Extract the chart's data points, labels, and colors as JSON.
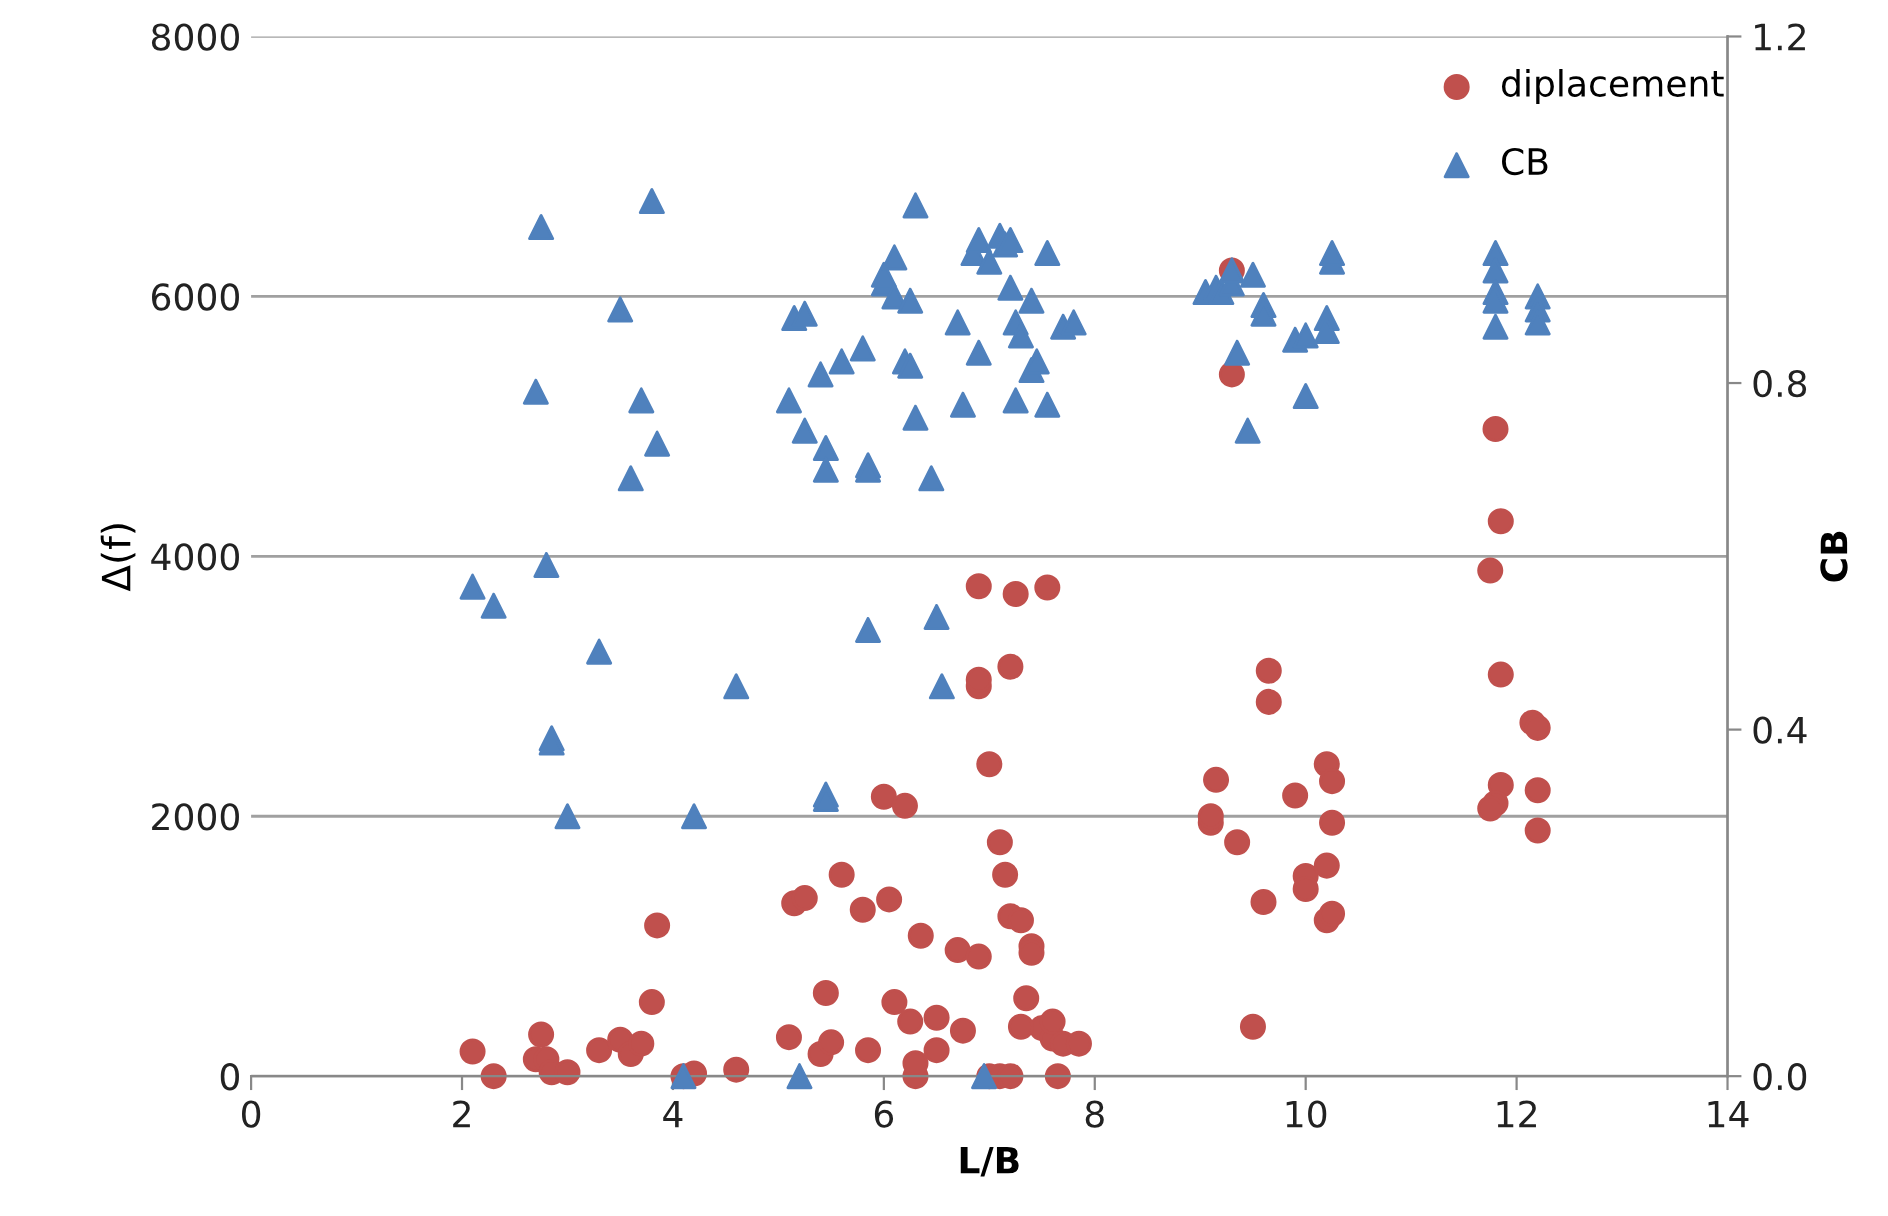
{
  "chart_data": {
    "type": "scatter",
    "xlabel": "L/B",
    "ylabel": "Δ(f)",
    "y2label": "CB",
    "xlim": [
      0,
      14
    ],
    "xticks": [
      0,
      2,
      4,
      6,
      8,
      10,
      12,
      14
    ],
    "ylim": [
      0,
      8000
    ],
    "yticks": [
      0,
      2000,
      4000,
      6000,
      8000
    ],
    "y2lim": [
      0,
      1.2
    ],
    "y2ticks": [
      {
        "value": 0,
        "label": "0.0"
      },
      {
        "value": 0.4,
        "label": "0.4"
      },
      {
        "value": 0.8,
        "label": "0.8"
      },
      {
        "value": 1.2,
        "label": "1.2"
      }
    ],
    "grid": "y",
    "legend": "top right",
    "series": [
      {
        "name": "diplacement",
        "color": "#c0504d",
        "marker": "circle",
        "x": [
          2.1,
          2.3,
          2.7,
          2.75,
          2.8,
          2.85,
          3.0,
          3.3,
          3.5,
          3.6,
          3.7,
          3.8,
          3.85,
          4.1,
          4.2,
          4.6,
          5.1,
          5.15,
          5.25,
          5.4,
          5.45,
          5.5,
          5.6,
          5.8,
          5.85,
          6.0,
          6.05,
          6.1,
          6.2,
          6.25,
          6.3,
          6.3,
          6.35,
          6.5,
          6.5,
          6.7,
          6.75,
          6.9,
          6.9,
          6.9,
          6.9,
          7.0,
          7.1,
          7.15,
          7.2,
          7.2,
          7.25,
          7.3,
          7.35,
          7.4,
          7.4,
          7.0,
          7.1,
          7.2,
          7.5,
          7.55,
          7.6,
          7.6,
          7.65,
          7.7,
          7.85,
          7.3,
          9.1,
          9.1,
          9.15,
          9.3,
          9.3,
          9.35,
          9.5,
          9.6,
          9.65,
          9.65,
          9.9,
          10.0,
          10.0,
          10.2,
          10.25,
          10.25,
          10.2,
          10.2,
          10.25,
          11.8,
          11.85,
          11.75,
          11.85,
          11.85,
          11.8,
          11.75,
          12.15,
          12.2,
          12.2,
          12.2
        ],
        "values": [
          190,
          0,
          130,
          320,
          130,
          30,
          30,
          200,
          280,
          170,
          250,
          570,
          1160,
          0,
          20,
          50,
          300,
          1330,
          1370,
          170,
          640,
          260,
          1550,
          1280,
          200,
          2150,
          1360,
          570,
          2080,
          420,
          0,
          100,
          1080,
          450,
          200,
          970,
          350,
          920,
          3770,
          3000,
          3050,
          2400,
          1800,
          1550,
          1230,
          3150,
          3710,
          1200,
          600,
          1000,
          950,
          0,
          0,
          0,
          370,
          3760,
          290,
          420,
          0,
          250,
          250,
          380,
          1950,
          2000,
          2280,
          6200,
          5400,
          1800,
          380,
          1340,
          3120,
          2880,
          2160,
          1540,
          1440,
          2400,
          2270,
          1950,
          1620,
          1200,
          1250,
          4980,
          4270,
          3890,
          3090,
          2240,
          2100,
          2060,
          2720,
          2680,
          2200,
          1890
        ]
      },
      {
        "name": "CB",
        "color": "#4f81bd",
        "marker": "triangle",
        "axis": "y2",
        "x": [
          2.1,
          2.3,
          2.7,
          2.75,
          2.8,
          2.85,
          2.85,
          3.0,
          3.3,
          3.5,
          3.6,
          3.7,
          3.8,
          3.85,
          4.1,
          4.2,
          4.6,
          5.1,
          5.15,
          5.2,
          5.25,
          5.25,
          5.4,
          5.45,
          5.45,
          5.45,
          5.45,
          5.6,
          5.8,
          5.85,
          5.85,
          5.85,
          6.0,
          6.0,
          6.1,
          6.1,
          6.2,
          6.25,
          6.25,
          6.3,
          6.3,
          6.45,
          6.5,
          6.55,
          6.7,
          6.75,
          6.85,
          6.9,
          6.9,
          6.95,
          7.0,
          7.1,
          7.15,
          7.2,
          7.2,
          7.25,
          7.25,
          7.3,
          7.4,
          7.4,
          7.45,
          7.55,
          7.55,
          7.7,
          7.8,
          9.05,
          9.15,
          9.2,
          9.3,
          9.3,
          9.35,
          9.45,
          9.5,
          9.6,
          9.6,
          9.9,
          10.0,
          10.0,
          10.2,
          10.2,
          10.25,
          10.25,
          11.8,
          11.8,
          11.8,
          11.8,
          11.8,
          12.2,
          12.2,
          12.2
        ],
        "values": [
          0.565,
          0.543,
          0.79,
          0.98,
          0.59,
          0.39,
          0.385,
          0.3,
          0.49,
          0.885,
          0.69,
          0.78,
          1.01,
          0.73,
          0,
          0.3,
          0.45,
          0.78,
          0.875,
          0,
          0.88,
          0.745,
          0.81,
          0.725,
          0.7,
          0.325,
          0.32,
          0.825,
          0.84,
          0.705,
          0.7,
          0.515,
          0.915,
          0.925,
          0.9,
          0.945,
          0.825,
          0.82,
          0.895,
          1.005,
          0.76,
          0.69,
          0.53,
          0.45,
          0.87,
          0.775,
          0.95,
          0.965,
          0.835,
          0,
          0.94,
          0.97,
          0.96,
          0.965,
          0.91,
          0.87,
          0.78,
          0.855,
          0.895,
          0.815,
          0.825,
          0.775,
          0.95,
          0.865,
          0.87,
          0.905,
          0.91,
          0.905,
          0.915,
          0.93,
          0.835,
          0.745,
          0.925,
          0.89,
          0.88,
          0.85,
          0.855,
          0.785,
          0.875,
          0.86,
          0.94,
          0.95,
          0.95,
          0.93,
          0.905,
          0.895,
          0.865,
          0.9,
          0.885,
          0.87
        ]
      }
    ]
  }
}
